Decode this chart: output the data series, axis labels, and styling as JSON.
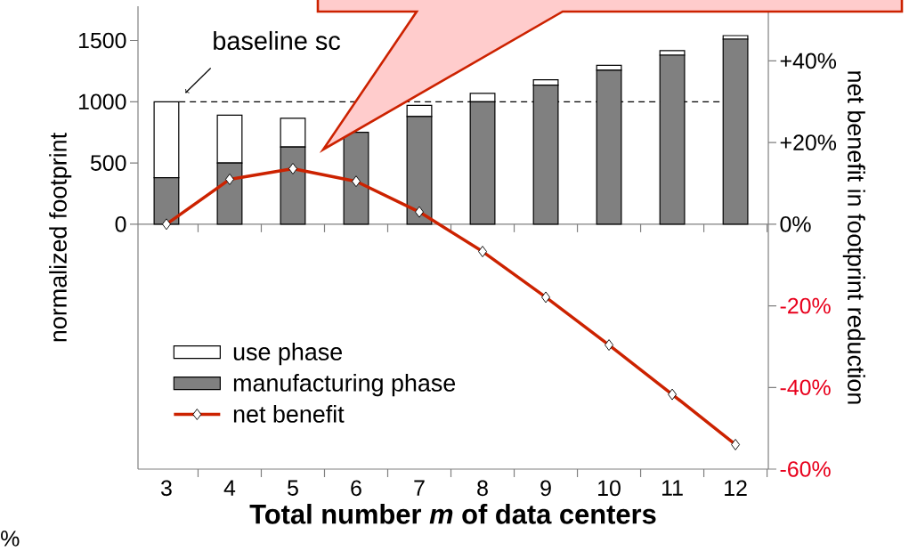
{
  "chart_data": {
    "type": "bar",
    "stacked": true,
    "xlabel": "Total number *m* of data centers",
    "ylabel": "normalized footprint",
    "y2label": "net benefit in footprint reduction",
    "categories": [
      "3",
      "4",
      "5",
      "6",
      "7",
      "8",
      "9",
      "10",
      "11",
      "12"
    ],
    "series": [
      {
        "name": "manufacturing phase",
        "color": "#808080",
        "values": [
          380,
          500,
          630,
          750,
          880,
          1000,
          1135,
          1258,
          1380,
          1511
        ]
      },
      {
        "name": "use phase",
        "color": "#ffffff",
        "values": [
          620,
          390,
          235,
          null,
          90,
          68,
          44,
          39,
          37,
          29
        ]
      },
      {
        "name": "net benefit",
        "type": "line",
        "axis": "y2",
        "color": "#cc2200",
        "marker": "diamond",
        "values": [
          0,
          11,
          13.6,
          10.5,
          3,
          -6.7,
          -17.9,
          -29.6,
          -41.7,
          -54
        ]
      }
    ],
    "ylim": [
      -2000,
      1780
    ],
    "yticks": [
      0,
      500,
      1000,
      1500
    ],
    "y2lim": [
      -60,
      53.4
    ],
    "y2ticks": [
      {
        "value": -60,
        "label": "-60%"
      },
      {
        "value": -40,
        "label": "-40%"
      },
      {
        "value": -20,
        "label": "-20%"
      },
      {
        "value": 0,
        "label": "0%"
      },
      {
        "value": 20,
        "label": "+20%"
      },
      {
        "value": 40,
        "label": "+40%"
      }
    ],
    "ref_lines": [
      {
        "axis": "y",
        "value": 1000,
        "line_style": "dashed",
        "color": "#000000"
      }
    ],
    "annotations": [
      {
        "text": "baseline sc",
        "x": "3",
        "y": 1000
      },
      "%"
    ],
    "legend": "bottom left",
    "grid": false
  }
}
